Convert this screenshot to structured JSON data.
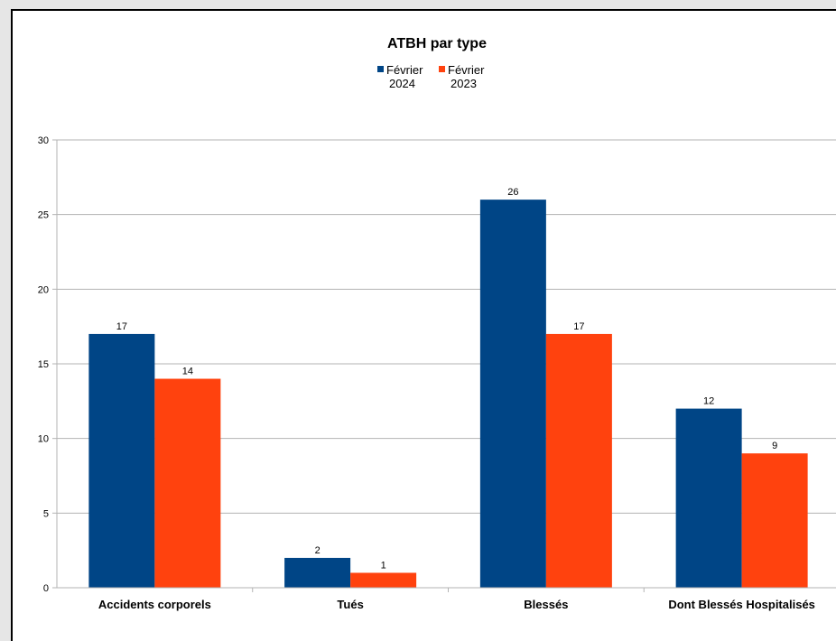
{
  "chart_data": {
    "type": "bar",
    "title": "ATBH par type",
    "categories": [
      "Accidents corporels",
      "Tués",
      "Blessés",
      "Dont Blessés Hospitalisés"
    ],
    "series": [
      {
        "name": "Février 2024",
        "name_lines": [
          "Février",
          "2024"
        ],
        "color": "#004586",
        "values": [
          17,
          2,
          26,
          12
        ]
      },
      {
        "name": "Février 2023",
        "name_lines": [
          "Février",
          "2023"
        ],
        "color": "#ff420e",
        "values": [
          14,
          1,
          17,
          9
        ]
      }
    ],
    "ylim": [
      0,
      30
    ],
    "yticks": [
      0,
      5,
      10,
      15,
      20,
      25,
      30
    ],
    "grid": true,
    "legend_position": "top"
  }
}
